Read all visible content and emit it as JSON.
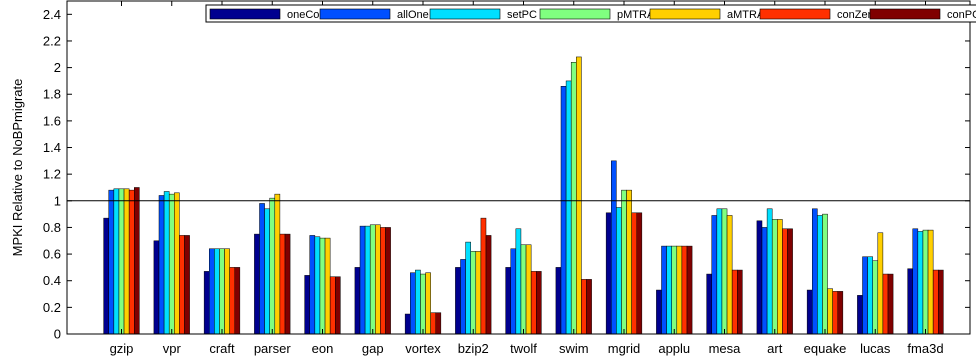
{
  "chart_data": {
    "type": "bar",
    "title": "",
    "xlabel": "",
    "ylabel": "MPKI Relative to NoBPmigrate",
    "ylim": [
      0,
      2.5
    ],
    "yticks": [
      0,
      0.2,
      0.4,
      0.6,
      0.8,
      1,
      1.2,
      1.4,
      1.6,
      1.8,
      2,
      2.2,
      2.4
    ],
    "reference_line": 1,
    "grid": false,
    "legend_position": "top-right",
    "categories": [
      "gzip",
      "vpr",
      "craft",
      "parser",
      "eon",
      "gap",
      "vortex",
      "bzip2",
      "twolf",
      "swim",
      "mgrid",
      "applu",
      "mesa",
      "art",
      "equake",
      "lucas",
      "fma3d"
    ],
    "series": [
      {
        "name": "oneCore",
        "color": "#00008f",
        "values": [
          0.87,
          0.7,
          0.47,
          0.75,
          0.44,
          0.5,
          0.15,
          0.5,
          0.5,
          0.5,
          0.91,
          0.33,
          0.45,
          0.85,
          0.33,
          0.29,
          0.49
        ]
      },
      {
        "name": "allOne",
        "color": "#0050ff",
        "values": [
          1.08,
          1.04,
          0.64,
          0.98,
          0.74,
          0.81,
          0.46,
          0.56,
          0.64,
          1.86,
          1.3,
          0.66,
          0.89,
          0.8,
          0.94,
          0.58,
          0.79
        ]
      },
      {
        "name": "setPC",
        "color": "#00dfff",
        "values": [
          1.09,
          1.07,
          0.64,
          0.94,
          0.73,
          0.81,
          0.48,
          0.69,
          0.79,
          1.9,
          0.95,
          0.66,
          0.94,
          0.94,
          0.89,
          0.58,
          0.77
        ]
      },
      {
        "name": "pMTRAM",
        "color": "#80ff80",
        "values": [
          1.09,
          1.05,
          0.64,
          1.02,
          0.72,
          0.82,
          0.45,
          0.62,
          0.67,
          2.04,
          1.08,
          0.66,
          0.94,
          0.86,
          0.9,
          0.55,
          0.78
        ]
      },
      {
        "name": "aMTRAM",
        "color": "#ffcf00",
        "values": [
          1.09,
          1.06,
          0.64,
          1.05,
          0.72,
          0.82,
          0.46,
          0.62,
          0.67,
          2.08,
          1.08,
          0.66,
          0.89,
          0.86,
          0.34,
          0.76,
          0.78
        ]
      },
      {
        "name": "conZero",
        "color": "#ff3000",
        "values": [
          1.08,
          0.74,
          0.5,
          0.75,
          0.43,
          0.8,
          0.16,
          0.87,
          0.47,
          0.41,
          0.91,
          0.66,
          0.48,
          0.79,
          0.32,
          0.45,
          0.48
        ]
      },
      {
        "name": "conPC",
        "color": "#800000",
        "values": [
          1.1,
          0.74,
          0.5,
          0.75,
          0.43,
          0.8,
          0.16,
          0.74,
          0.47,
          0.41,
          0.91,
          0.66,
          0.48,
          0.79,
          0.32,
          0.45,
          0.48
        ]
      }
    ]
  }
}
